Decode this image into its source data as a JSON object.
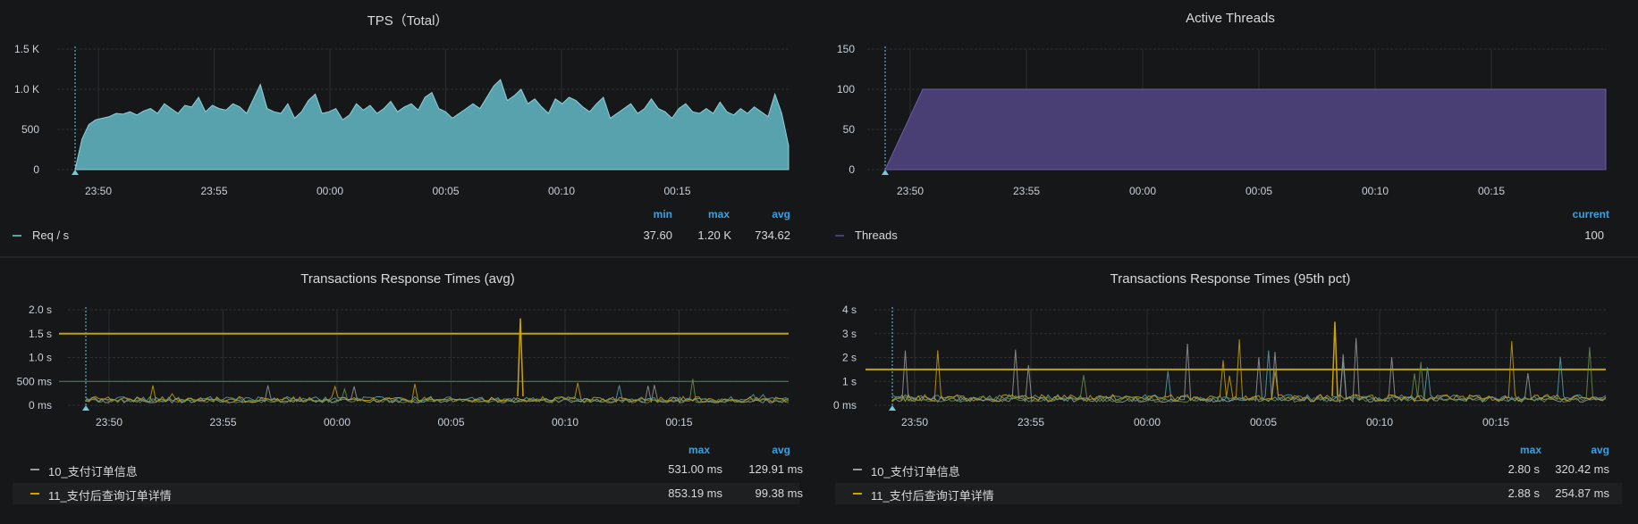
{
  "colors": {
    "teal": "#58a2ad",
    "purple": "#4a3f75",
    "grey": "#9a9a9a",
    "gold": "#cca300",
    "threshold": "#c8a000",
    "green": "#4e8b4e",
    "accent": "#33a2e5"
  },
  "panels": [
    {
      "title": "TPS（Total）",
      "legend_headers": [
        "min",
        "max",
        "avg"
      ],
      "legend": [
        {
          "name": "Req / s",
          "values": [
            "37.60",
            "1.20 K",
            "734.62"
          ]
        }
      ]
    },
    {
      "title": "Active Threads",
      "legend_headers": [
        "current"
      ],
      "legend": [
        {
          "name": "Threads",
          "values": [
            "100"
          ]
        }
      ]
    },
    {
      "title": "Transactions Response Times (avg)",
      "legend_headers": [
        "max",
        "avg"
      ],
      "legend": [
        {
          "name": "10_支付订单信息",
          "values": [
            "531.00 ms",
            "129.91 ms"
          ]
        },
        {
          "name": "11_支付后查询订单详情",
          "values": [
            "853.19 ms",
            "99.38 ms"
          ]
        }
      ]
    },
    {
      "title": "Transactions Response Times (95th pct)",
      "legend_headers": [
        "max",
        "avg"
      ],
      "legend": [
        {
          "name": "10_支付订单信息",
          "values": [
            "2.80 s",
            "320.42 ms"
          ]
        },
        {
          "name": "11_支付后查询订单详情",
          "values": [
            "2.88 s",
            "254.87 ms"
          ]
        }
      ]
    }
  ],
  "chart_data": [
    {
      "type": "area",
      "title": "TPS（Total）",
      "x_ticks": [
        "23:50",
        "23:55",
        "00:00",
        "00:05",
        "00:10",
        "00:15"
      ],
      "y_ticks": [
        "0",
        "500",
        "1.0 K",
        "1.5 K"
      ],
      "ylim": [
        0,
        1500
      ],
      "series": [
        {
          "name": "Req / s",
          "color": "#58a2ad",
          "values": [
            0,
            380,
            560,
            620,
            640,
            660,
            700,
            690,
            720,
            680,
            730,
            760,
            700,
            820,
            760,
            700,
            800,
            780,
            900,
            720,
            800,
            760,
            740,
            820,
            780,
            700,
            880,
            1060,
            760,
            720,
            700,
            820,
            640,
            720,
            860,
            940,
            700,
            720,
            760,
            620,
            680,
            820,
            740,
            800,
            700,
            760,
            850,
            720,
            780,
            820,
            740,
            900,
            960,
            760,
            720,
            640,
            700,
            760,
            820,
            760,
            900,
            1040,
            1120,
            860,
            920,
            1000,
            820,
            880,
            780,
            700,
            880,
            820,
            900,
            860,
            780,
            720,
            820,
            900,
            640,
            700,
            760,
            820,
            700,
            760,
            880,
            760,
            720,
            640,
            760,
            820,
            720,
            700,
            760,
            700,
            840,
            720,
            680,
            760,
            700,
            780,
            720,
            660,
            940,
            700,
            300
          ]
        }
      ]
    },
    {
      "type": "area",
      "title": "Active Threads",
      "x_ticks": [
        "23:50",
        "23:55",
        "00:00",
        "00:05",
        "00:10",
        "00:15"
      ],
      "y_ticks": [
        "0",
        "50",
        "100",
        "150"
      ],
      "ylim": [
        0,
        150
      ],
      "series": [
        {
          "name": "Threads",
          "color": "#4a3f75",
          "ramp_end": 100,
          "plateau": 100
        }
      ]
    },
    {
      "type": "line",
      "title": "Transactions Response Times (avg)",
      "x_ticks": [
        "23:50",
        "23:55",
        "00:00",
        "00:05",
        "00:10",
        "00:15"
      ],
      "y_ticks": [
        "0 ms",
        "500 ms",
        "1.0 s",
        "1.5 s",
        "2.0 s"
      ],
      "ylim": [
        0,
        2000
      ],
      "threshold": 1500,
      "series": [
        {
          "name": "10_支付订单信息",
          "color": "#9a9a9a",
          "max": 531.0,
          "avg": 129.91
        },
        {
          "name": "11_支付后查询订单详情",
          "color": "#cca300",
          "max": 853.19,
          "avg": 99.38
        }
      ]
    },
    {
      "type": "line",
      "title": "Transactions Response Times (95th pct)",
      "x_ticks": [
        "23:50",
        "23:55",
        "00:00",
        "00:05",
        "00:10",
        "00:15"
      ],
      "y_ticks": [
        "0 ms",
        "1 s",
        "2 s",
        "3 s",
        "4 s"
      ],
      "ylim": [
        0,
        4000
      ],
      "threshold": 1500,
      "series": [
        {
          "name": "10_支付订单信息",
          "color": "#9a9a9a",
          "max": 2800,
          "avg": 320.42
        },
        {
          "name": "11_支付后查询订单详情",
          "color": "#cca300",
          "max": 2880,
          "avg": 254.87
        }
      ]
    }
  ]
}
